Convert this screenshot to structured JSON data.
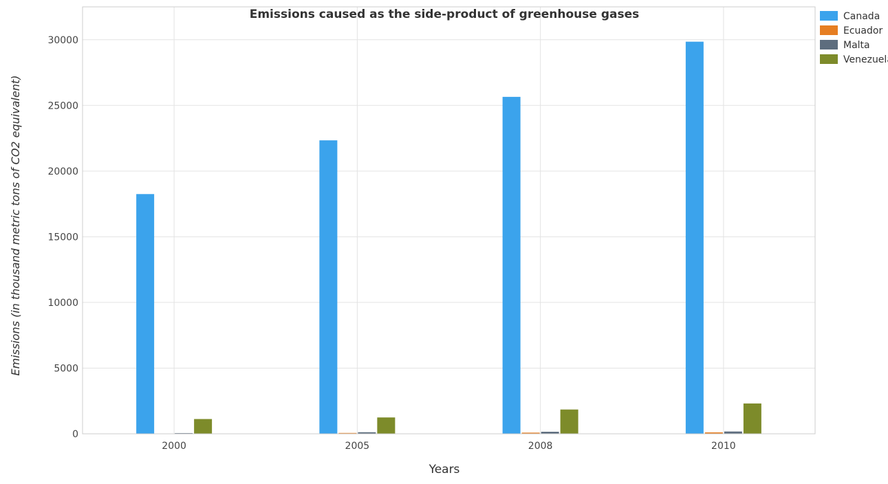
{
  "chart_data": {
    "type": "bar",
    "title": "Emissions caused as the side-product of greenhouse gases",
    "xlabel": "Years",
    "ylabel": "Emissions (in thousand metric tons of CO2 equivalent)",
    "categories": [
      "2000",
      "2005",
      "2008",
      "2010"
    ],
    "ylim": [
      0,
      32500
    ],
    "yticks": [
      0,
      5000,
      10000,
      15000,
      20000,
      25000,
      30000
    ],
    "ytick_labels": [
      "0",
      "5000",
      "10000",
      "15000",
      "20000",
      "25000",
      "30000"
    ],
    "grid": true,
    "legend_position": "top-right",
    "series": [
      {
        "name": "Canada",
        "color": "#3ba3ec",
        "values": [
          18250,
          22340,
          25650,
          29850
        ]
      },
      {
        "name": "Ecuador",
        "color": "#e67e22",
        "values": [
          20,
          65,
          90,
          110
        ]
      },
      {
        "name": "Malta",
        "color": "#5d6d7e",
        "values": [
          55,
          120,
          155,
          175
        ]
      },
      {
        "name": "Venezuela",
        "color": "#7d8b2a",
        "values": [
          1125,
          1245,
          1850,
          2310
        ]
      }
    ]
  }
}
